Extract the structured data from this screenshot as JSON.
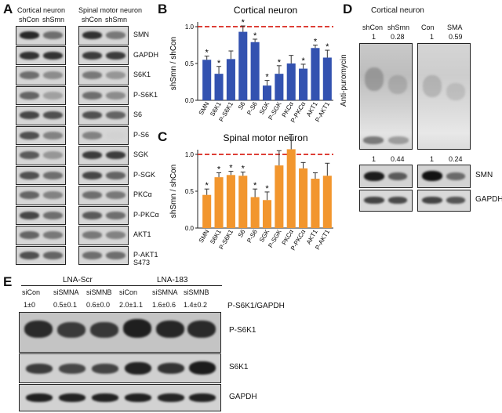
{
  "panelA": {
    "letter": "A",
    "groups": [
      {
        "title": "Cortical neuron",
        "lanes": [
          "shCon",
          "shSmn"
        ]
      },
      {
        "title": "Spinal motor neuron",
        "lanes": [
          "shCon",
          "shSmn"
        ]
      }
    ],
    "rows": [
      "SMN",
      "GAPDH",
      "S6K1",
      "P-S6K1",
      "S6",
      "P-S6",
      "SGK",
      "P-SGK",
      "PKCα",
      "P-PKCα",
      "AKT1",
      "P-AKT1"
    ],
    "last_row_sub": "S473"
  },
  "chart_data": [
    {
      "id": "B",
      "type": "bar",
      "title": "Cortical neuron",
      "ylabel": "shSmn / shCon",
      "xlabel": "",
      "ylim": [
        0,
        1
      ],
      "yticks": [
        "0.0",
        "0.5",
        "1.0"
      ],
      "reference_line": 1.0,
      "bar_color": "#3352b0",
      "categories": [
        "SMN",
        "S6K1",
        "P-S6K1",
        "S6",
        "P-S6",
        "SGK",
        "P-SGK",
        "PKCα",
        "P-PKCα",
        "AKT1",
        "P-AKT1"
      ],
      "values": [
        0.55,
        0.36,
        0.56,
        0.93,
        0.79,
        0.2,
        0.36,
        0.5,
        0.43,
        0.71,
        0.58
      ],
      "errors": [
        0.05,
        0.1,
        0.11,
        0.08,
        0.04,
        0.07,
        0.11,
        0.11,
        0.06,
        0.04,
        0.1
      ],
      "significant": [
        true,
        true,
        false,
        true,
        true,
        true,
        true,
        false,
        true,
        true,
        true
      ]
    },
    {
      "id": "C",
      "type": "bar",
      "title": "Spinal motor neuron",
      "ylabel": "shSmn / shCon",
      "xlabel": "",
      "ylim": [
        0,
        1
      ],
      "yticks": [
        "0.0",
        "0.5",
        "1.0"
      ],
      "reference_line": 1.0,
      "bar_color": "#f2962e",
      "categories": [
        "SMN",
        "S6K1",
        "P-S6K1",
        "S6",
        "P-S6",
        "SGK",
        "P-SGK",
        "PKCα",
        "P-PKCα",
        "AKT1",
        "P-AKT1"
      ],
      "values": [
        0.45,
        0.69,
        0.72,
        0.71,
        0.42,
        0.38,
        0.85,
        1.07,
        0.81,
        0.67,
        0.71
      ],
      "errors": [
        0.08,
        0.06,
        0.05,
        0.05,
        0.11,
        0.11,
        0.2,
        0.2,
        0.08,
        0.08,
        0.17
      ],
      "significant": [
        true,
        true,
        true,
        true,
        true,
        true,
        false,
        false,
        false,
        false,
        false
      ]
    }
  ],
  "panelD": {
    "letter": "D",
    "title": "Cortical neuron",
    "lanes": [
      "shCon",
      "shSmn",
      "Con",
      "SMA"
    ],
    "top_values": [
      "1",
      "0.28",
      "1",
      "0.59"
    ],
    "side_label": "Anti-puromycin",
    "bottom_values": [
      "1",
      "0.44",
      "1",
      "0.24"
    ],
    "row_labels": [
      "SMN",
      "GAPDH"
    ]
  },
  "panelE": {
    "letter": "E",
    "groups": [
      "LNA-Scr",
      "LNA-183"
    ],
    "lanes": [
      "siCon",
      "siSMNA",
      "siSMNB",
      "siCon",
      "siSMNA",
      "siSMNB"
    ],
    "quant": [
      "1±0",
      "0.5±0.1",
      "0.6±0.0",
      "2.0±1.1",
      "1.6±0.6",
      "1.4±0.2"
    ],
    "quant_label": "P-S6K1/GAPDH",
    "row_labels": [
      "P-S6K1",
      "S6K1",
      "GAPDH"
    ]
  }
}
